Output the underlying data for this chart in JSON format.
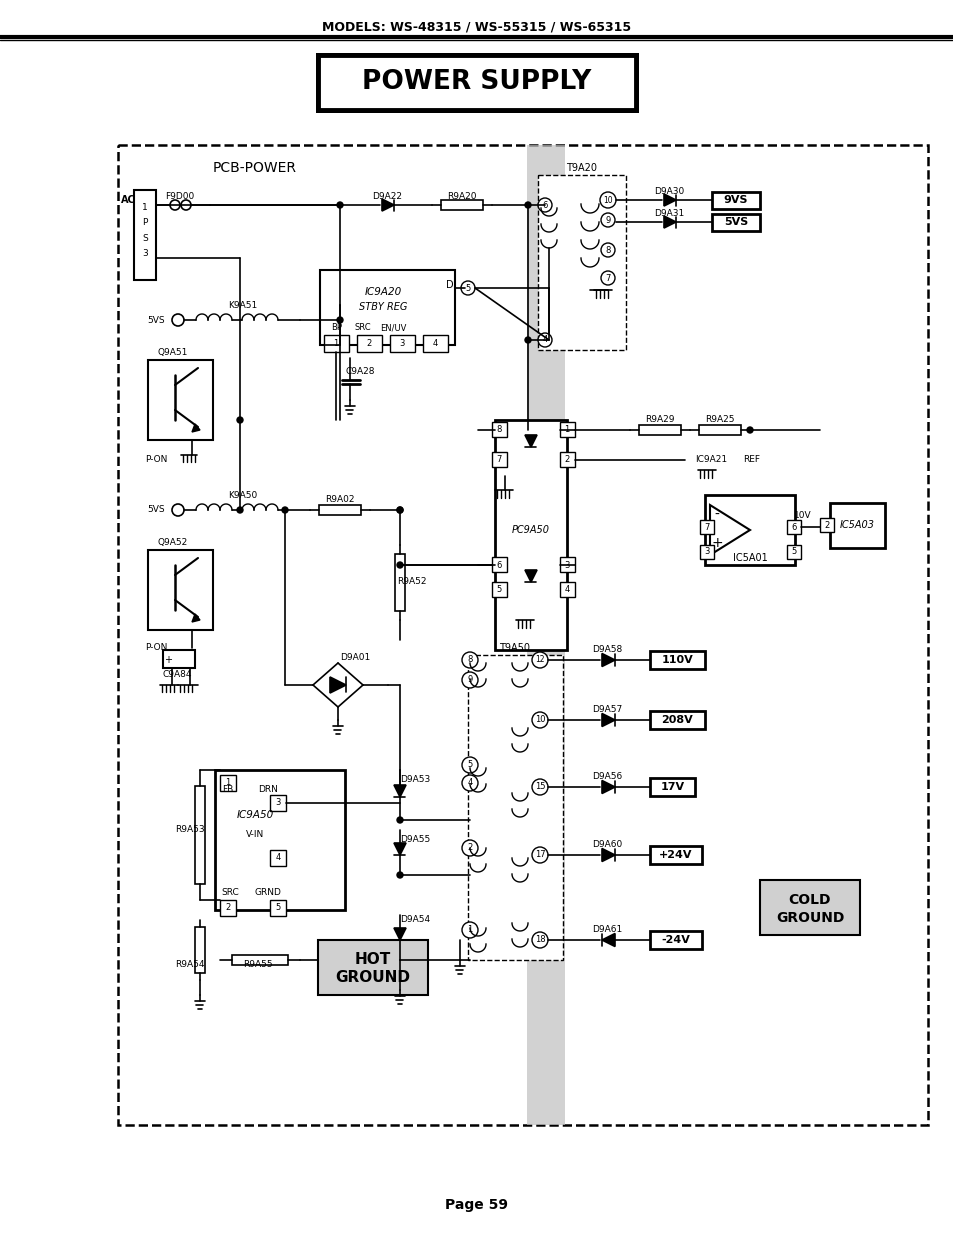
{
  "title": "POWER SUPPLY",
  "header": "MODELS: WS-48315 / WS-55315 / WS-65315",
  "page": "Page 59",
  "background": "#ffffff"
}
